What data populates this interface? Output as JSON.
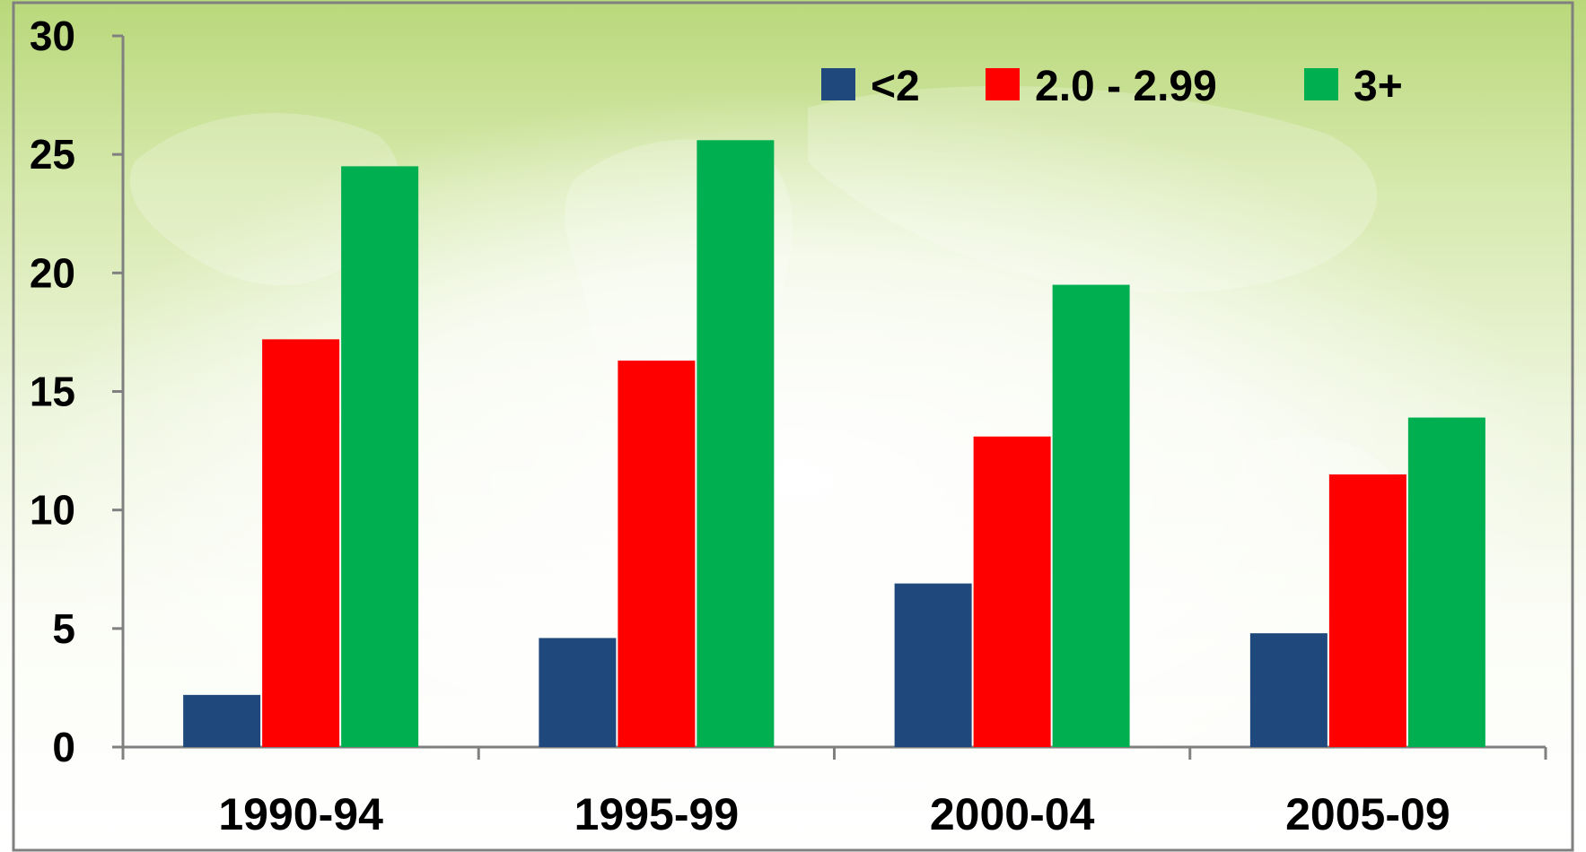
{
  "chart_data": {
    "type": "bar",
    "categories": [
      "1990-94",
      "1995-99",
      "2000-04",
      "2005-09"
    ],
    "series": [
      {
        "name": "<2",
        "color": "#1f497d",
        "values": [
          2.2,
          4.6,
          6.9,
          4.8
        ]
      },
      {
        "name": "2.0 - 2.99",
        "color": "#ff0000",
        "values": [
          17.2,
          16.3,
          13.1,
          11.5
        ]
      },
      {
        "name": "3+",
        "color": "#00b050",
        "values": [
          24.5,
          25.6,
          19.5,
          13.9
        ]
      }
    ],
    "ylim": [
      0,
      30
    ],
    "yticks": [
      0,
      5,
      10,
      15,
      20,
      25,
      30
    ],
    "grid": false,
    "legend_position": "top-right",
    "title": "",
    "xlabel": "",
    "ylabel": ""
  }
}
